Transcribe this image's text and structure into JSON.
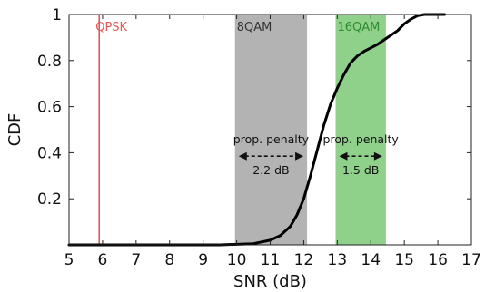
{
  "chart_data": {
    "type": "line",
    "xlabel": "SNR (dB)",
    "ylabel": "CDF",
    "xlim": [
      5,
      17
    ],
    "ylim": [
      0,
      1
    ],
    "xticks": [
      "5",
      "6",
      "7",
      "8",
      "9",
      "10",
      "11",
      "12",
      "13",
      "14",
      "15",
      "16",
      "17"
    ],
    "yticks": [
      "0.2",
      "0.4",
      "0.6",
      "0.8",
      "1"
    ],
    "grid": false,
    "series": [
      {
        "color": "#000000",
        "x": [
          5,
          9.5,
          10.5,
          11.0,
          11.3,
          11.6,
          11.8,
          12.0,
          12.2,
          12.4,
          12.6,
          12.8,
          13.0,
          13.2,
          13.4,
          13.6,
          13.8,
          14.0,
          14.2,
          14.4,
          14.6,
          14.8,
          15.0,
          15.2,
          15.4,
          15.6,
          16.0,
          16.2
        ],
        "y": [
          0.0,
          0.0,
          0.005,
          0.02,
          0.04,
          0.08,
          0.13,
          0.2,
          0.3,
          0.41,
          0.52,
          0.61,
          0.68,
          0.74,
          0.79,
          0.82,
          0.84,
          0.855,
          0.87,
          0.89,
          0.91,
          0.93,
          0.96,
          0.98,
          0.995,
          1.0,
          1.0,
          1.0
        ]
      }
    ],
    "threshold": {
      "label": "QPSK",
      "x": 5.9,
      "color": "#e05a55"
    },
    "regions": [
      {
        "label": "8QAM",
        "x0": 9.95,
        "x1": 12.1,
        "color": "#b3b3b3",
        "label_color": "#333333",
        "annotation": {
          "text": "prop. penalty",
          "value": "2.2 dB",
          "from": 9.95,
          "to": 12.1,
          "y": 0.385
        }
      },
      {
        "label": "16QAM",
        "x0": 12.95,
        "x1": 14.45,
        "color": "#8fd18b",
        "label_color": "#2e8b2e",
        "annotation": {
          "text": "prop. penalty",
          "value": "1.5 dB",
          "from": 12.95,
          "to": 14.45,
          "y": 0.385
        }
      }
    ]
  }
}
